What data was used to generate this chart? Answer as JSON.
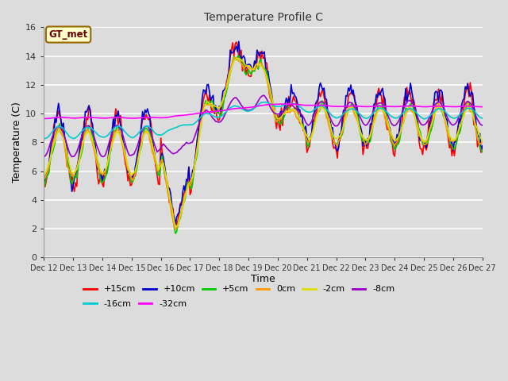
{
  "title": "Temperature Profile C",
  "xlabel": "Time",
  "ylabel": "Temperature (C)",
  "ylim": [
    0,
    16
  ],
  "xlim": [
    0,
    360
  ],
  "x_tick_labels": [
    "Dec 12",
    "Dec 13",
    "Dec 14",
    "Dec 15",
    "Dec 16",
    "Dec 17",
    "Dec 18",
    "Dec 19",
    "Dec 20",
    "Dec 21",
    "Dec 22",
    "Dec 23",
    "Dec 24",
    "Dec 25",
    "Dec 26",
    "Dec 27"
  ],
  "x_tick_positions": [
    0,
    24,
    48,
    72,
    96,
    120,
    144,
    168,
    192,
    216,
    240,
    264,
    288,
    312,
    336,
    360
  ],
  "legend_entries": [
    "+15cm",
    "+10cm",
    "+5cm",
    "0cm",
    "-2cm",
    "-8cm",
    "-16cm",
    "-32cm"
  ],
  "line_colors": [
    "#ff0000",
    "#0000cc",
    "#00cc00",
    "#ff9900",
    "#dddd00",
    "#9900cc",
    "#00cccc",
    "#ff00ff"
  ],
  "background_color": "#dcdcdc",
  "plot_bg_color": "#dcdcdc",
  "grid_color": "#ffffff",
  "annotation_text": "GT_met",
  "annotation_bg": "#ffffcc",
  "annotation_border": "#996600"
}
